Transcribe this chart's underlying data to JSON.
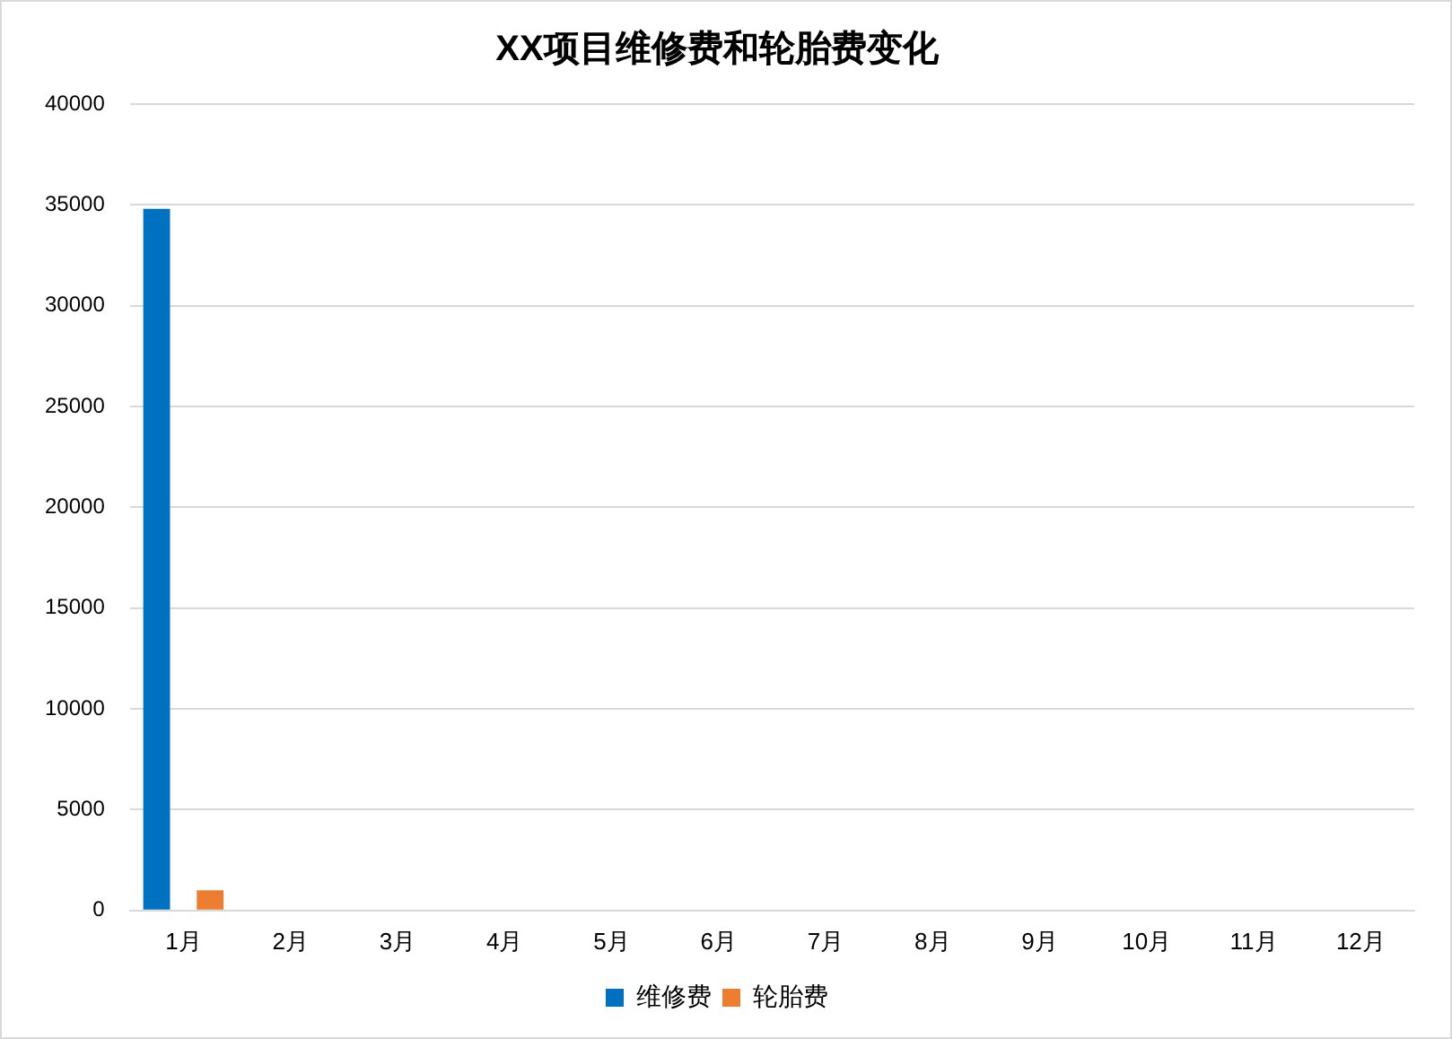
{
  "chart_data": {
    "type": "bar",
    "title": "XX项目维修费和轮胎费变化",
    "categories": [
      "1月",
      "2月",
      "3月",
      "4月",
      "5月",
      "6月",
      "7月",
      "8月",
      "9月",
      "10月",
      "11月",
      "12月"
    ],
    "series": [
      {
        "name": "维修费",
        "color": "#0070c0",
        "values": [
          34800,
          null,
          null,
          null,
          null,
          null,
          null,
          null,
          null,
          null,
          null,
          null
        ]
      },
      {
        "name": "轮胎费",
        "color": "#ed7d31",
        "values": [
          1000,
          null,
          null,
          null,
          null,
          null,
          null,
          null,
          null,
          null,
          null,
          null
        ]
      }
    ],
    "ylim": [
      0,
      40000
    ],
    "yticks": [
      0,
      5000,
      10000,
      15000,
      20000,
      25000,
      30000,
      35000,
      40000
    ],
    "grid": "y",
    "legend": "bottom"
  }
}
